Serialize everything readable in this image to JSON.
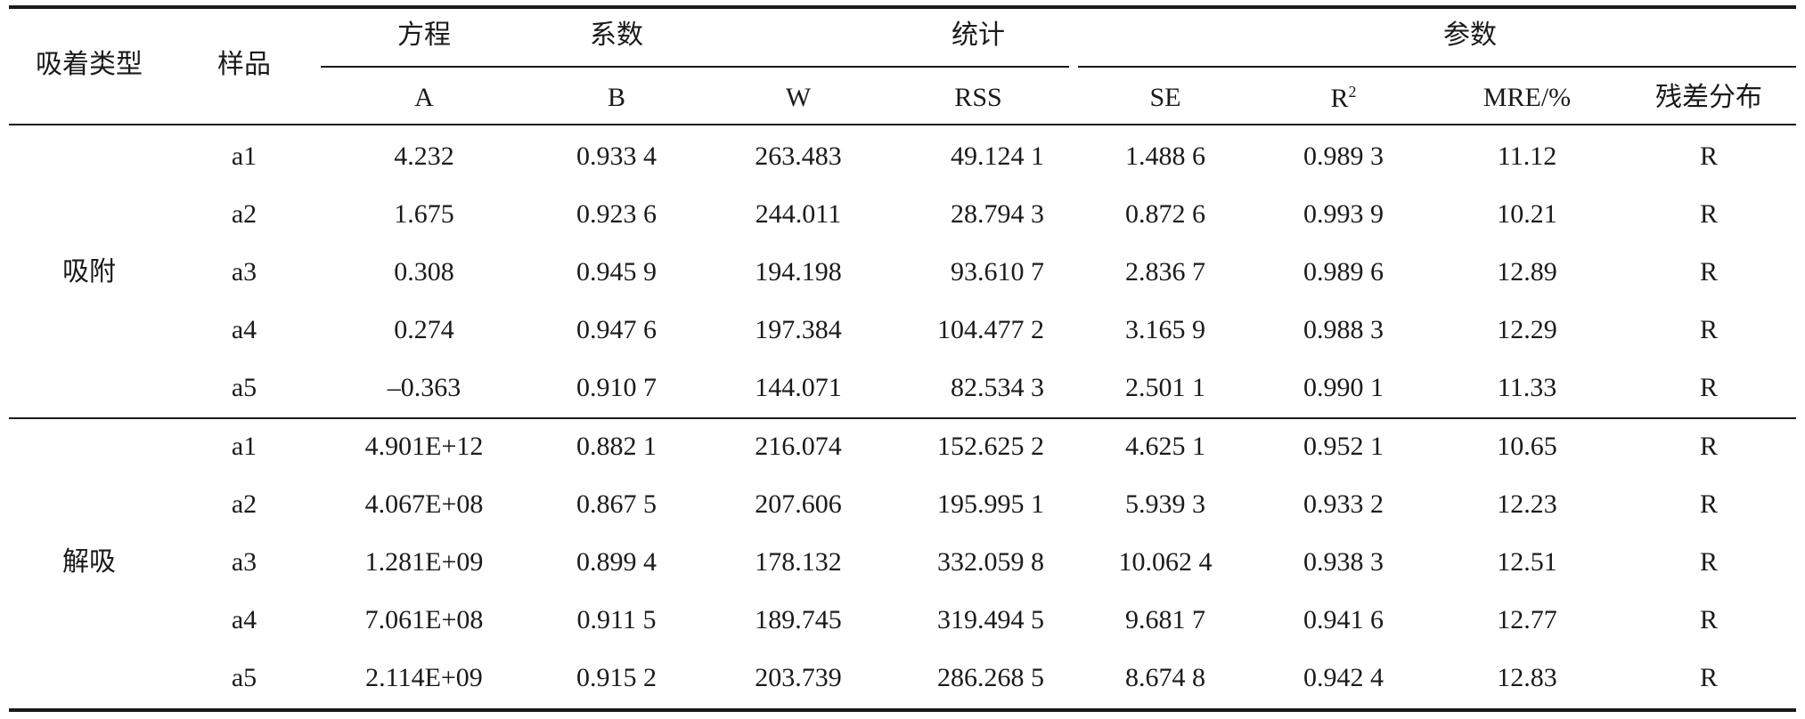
{
  "table": {
    "headers": {
      "adsorption_type": "吸着类型",
      "sample": "样品",
      "group1_a": "方程",
      "group1_b": "系数",
      "group2": "统计",
      "group3": "参数",
      "col_A": "A",
      "col_B": "B",
      "col_W": "W",
      "col_RSS": "RSS",
      "col_SE": "SE",
      "col_R2_base": "R",
      "col_R2_sup": "2",
      "col_MRE": "MRE/%",
      "col_residual": "残差分布"
    },
    "groups": [
      {
        "label": "吸附",
        "rows": [
          {
            "sample": "a1",
            "A": "4.232",
            "B": "0.933 4",
            "W": "263.483",
            "RSS": "49.124 1",
            "SE": "1.488 6",
            "R2": "0.989 3",
            "MRE": "11.12",
            "residual": "R"
          },
          {
            "sample": "a2",
            "A": "1.675",
            "B": "0.923 6",
            "W": "244.011",
            "RSS": "28.794 3",
            "SE": "0.872 6",
            "R2": "0.993 9",
            "MRE": "10.21",
            "residual": "R"
          },
          {
            "sample": "a3",
            "A": "0.308",
            "B": "0.945 9",
            "W": "194.198",
            "RSS": "93.610 7",
            "SE": "2.836 7",
            "R2": "0.989 6",
            "MRE": "12.89",
            "residual": "R"
          },
          {
            "sample": "a4",
            "A": "0.274",
            "B": "0.947 6",
            "W": "197.384",
            "RSS": "104.477 2",
            "SE": "3.165 9",
            "R2": "0.988 3",
            "MRE": "12.29",
            "residual": "R"
          },
          {
            "sample": "a5",
            "A": "–0.363",
            "B": "0.910 7",
            "W": "144.071",
            "RSS": "82.534 3",
            "SE": "2.501 1",
            "R2": "0.990 1",
            "MRE": "11.33",
            "residual": "R"
          }
        ]
      },
      {
        "label": "解吸",
        "rows": [
          {
            "sample": "a1",
            "A": "4.901E+12",
            "B": "0.882 1",
            "W": "216.074",
            "RSS": "152.625 2",
            "SE": "4.625 1",
            "R2": "0.952 1",
            "MRE": "10.65",
            "residual": "R"
          },
          {
            "sample": "a2",
            "A": "4.067E+08",
            "B": "0.867 5",
            "W": "207.606",
            "RSS": "195.995 1",
            "SE": "5.939 3",
            "R2": "0.933 2",
            "MRE": "12.23",
            "residual": "R"
          },
          {
            "sample": "a3",
            "A": "1.281E+09",
            "B": "0.899 4",
            "W": "178.132",
            "RSS": "332.059 8",
            "SE": "10.062 4",
            "R2": "0.938 3",
            "MRE": "12.51",
            "residual": "R"
          },
          {
            "sample": "a4",
            "A": "7.061E+08",
            "B": "0.911 5",
            "W": "189.745",
            "RSS": "319.494 5",
            "SE": "9.681 7",
            "R2": "0.941 6",
            "MRE": "12.77",
            "residual": "R"
          },
          {
            "sample": "a5",
            "A": "2.114E+09",
            "B": "0.915 2",
            "W": "203.739",
            "RSS": "286.268 5",
            "SE": "8.674 8",
            "R2": "0.942 4",
            "MRE": "12.83",
            "residual": "R"
          }
        ]
      }
    ]
  }
}
